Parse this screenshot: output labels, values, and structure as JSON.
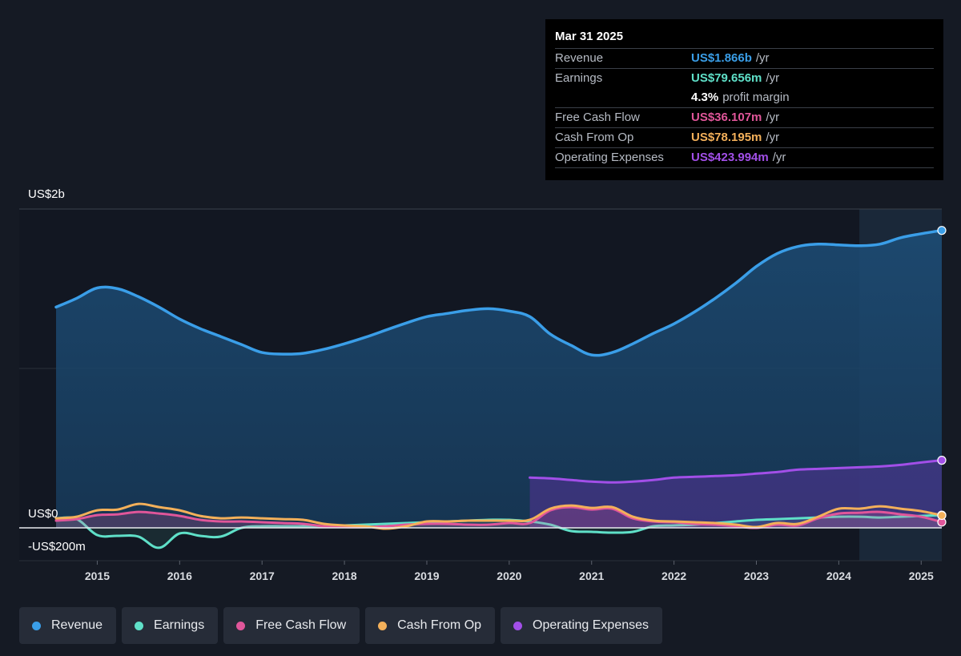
{
  "tooltip": {
    "date": "Mar 31 2025",
    "rows": [
      {
        "label": "Revenue",
        "value": "US$1.866b",
        "unit": "/yr",
        "color": "#3a9ee8"
      },
      {
        "label": "Earnings",
        "value": "US$79.656m",
        "unit": "/yr",
        "color": "#5fe0c8"
      },
      {
        "label": "",
        "value": "4.3%",
        "unit": "profit margin",
        "color": "#ffffff"
      },
      {
        "label": "Free Cash Flow",
        "value": "US$36.107m",
        "unit": "/yr",
        "color": "#e0569a"
      },
      {
        "label": "Cash From Op",
        "value": "US$78.195m",
        "unit": "/yr",
        "color": "#f3b05a"
      },
      {
        "label": "Operating Expenses",
        "value": "US$423.994m",
        "unit": "/yr",
        "color": "#a24fe8"
      }
    ]
  },
  "legend": [
    {
      "name": "Revenue",
      "color": "#3a9ee8"
    },
    {
      "name": "Earnings",
      "color": "#5fe0c8"
    },
    {
      "name": "Free Cash Flow",
      "color": "#e0569a"
    },
    {
      "name": "Cash From Op",
      "color": "#f3b05a"
    },
    {
      "name": "Operating Expenses",
      "color": "#a24fe8"
    }
  ],
  "chart_data": {
    "type": "area",
    "y_tick_labels": [
      "US$2b",
      "US$0",
      "-US$200m"
    ],
    "x_tick_labels": [
      "2015",
      "2016",
      "2017",
      "2018",
      "2019",
      "2020",
      "2021",
      "2022",
      "2023",
      "2024",
      "2025"
    ],
    "xlim": [
      2014.5,
      2025.25
    ],
    "ylim": [
      -200,
      2000
    ],
    "units": "US$ millions",
    "highlight_start": 2024.25,
    "series": [
      {
        "name": "Revenue",
        "color": "#3a9ee8",
        "fill": true,
        "x": [
          2014.5,
          2014.75,
          2015.0,
          2015.25,
          2015.5,
          2015.75,
          2016.0,
          2016.25,
          2016.5,
          2016.75,
          2017.0,
          2017.25,
          2017.5,
          2017.75,
          2018.0,
          2018.25,
          2018.5,
          2018.75,
          2019.0,
          2019.25,
          2019.5,
          2019.75,
          2020.0,
          2020.25,
          2020.5,
          2020.75,
          2021.0,
          2021.25,
          2021.5,
          2021.75,
          2022.0,
          2022.25,
          2022.5,
          2022.75,
          2023.0,
          2023.25,
          2023.5,
          2023.75,
          2024.0,
          2024.25,
          2024.5,
          2024.75,
          2025.0,
          2025.25
        ],
        "y": [
          1385,
          1440,
          1505,
          1500,
          1450,
          1385,
          1310,
          1250,
          1200,
          1150,
          1100,
          1090,
          1095,
          1120,
          1155,
          1195,
          1240,
          1285,
          1325,
          1345,
          1365,
          1375,
          1360,
          1325,
          1215,
          1145,
          1085,
          1100,
          1155,
          1220,
          1280,
          1355,
          1440,
          1535,
          1640,
          1720,
          1765,
          1780,
          1775,
          1770,
          1780,
          1820,
          1845,
          1866
        ]
      },
      {
        "name": "Operating Expenses",
        "color": "#a24fe8",
        "fill": true,
        "x": [
          2020.25,
          2020.5,
          2020.75,
          2021.0,
          2021.25,
          2021.5,
          2021.75,
          2022.0,
          2022.25,
          2022.5,
          2022.75,
          2023.0,
          2023.25,
          2023.5,
          2023.75,
          2024.0,
          2024.25,
          2024.5,
          2024.75,
          2025.0,
          2025.25
        ],
        "y": [
          315,
          310,
          300,
          290,
          285,
          290,
          300,
          315,
          320,
          325,
          330,
          340,
          350,
          365,
          370,
          375,
          380,
          385,
          395,
          410,
          424
        ]
      },
      {
        "name": "Earnings",
        "color": "#5fe0c8",
        "fill": true,
        "x": [
          2014.5,
          2014.75,
          2015.0,
          2015.25,
          2015.5,
          2015.75,
          2016.0,
          2016.25,
          2016.5,
          2016.75,
          2017.0,
          2017.25,
          2017.5,
          2017.75,
          2018.0,
          2018.25,
          2018.5,
          2018.75,
          2019.0,
          2019.25,
          2019.5,
          2019.75,
          2020.0,
          2020.25,
          2020.5,
          2020.75,
          2021.0,
          2021.25,
          2021.5,
          2021.75,
          2022.0,
          2022.25,
          2022.5,
          2022.75,
          2023.0,
          2023.25,
          2023.5,
          2023.75,
          2024.0,
          2024.25,
          2024.5,
          2024.75,
          2025.0,
          2025.25
        ],
        "y": [
          60,
          55,
          -45,
          -50,
          -55,
          -125,
          -35,
          -50,
          -55,
          0,
          10,
          10,
          10,
          10,
          15,
          20,
          25,
          30,
          35,
          40,
          45,
          50,
          50,
          40,
          20,
          -20,
          -25,
          -30,
          -25,
          10,
          15,
          20,
          30,
          40,
          50,
          55,
          60,
          65,
          70,
          70,
          65,
          70,
          75,
          80
        ]
      },
      {
        "name": "Free Cash Flow",
        "color": "#e0569a",
        "fill": true,
        "x": [
          2014.5,
          2014.75,
          2015.0,
          2015.25,
          2015.5,
          2015.75,
          2016.0,
          2016.25,
          2016.5,
          2016.75,
          2017.0,
          2017.25,
          2017.5,
          2017.75,
          2018.0,
          2018.25,
          2018.5,
          2018.75,
          2019.0,
          2019.25,
          2019.5,
          2019.75,
          2020.0,
          2020.25,
          2020.5,
          2020.75,
          2021.0,
          2021.25,
          2021.5,
          2021.75,
          2022.0,
          2022.25,
          2022.5,
          2022.75,
          2023.0,
          2023.25,
          2023.5,
          2023.75,
          2024.0,
          2024.25,
          2024.5,
          2024.75,
          2025.0,
          2025.25
        ],
        "y": [
          45,
          55,
          80,
          85,
          100,
          90,
          75,
          50,
          40,
          40,
          35,
          30,
          25,
          10,
          5,
          5,
          10,
          20,
          25,
          25,
          20,
          20,
          30,
          30,
          110,
          130,
          115,
          120,
          60,
          40,
          35,
          25,
          20,
          10,
          0,
          20,
          15,
          60,
          90,
          95,
          100,
          85,
          70,
          36
        ]
      },
      {
        "name": "Cash From Op",
        "color": "#f3b05a",
        "fill": false,
        "x": [
          2014.5,
          2014.75,
          2015.0,
          2015.25,
          2015.5,
          2015.75,
          2016.0,
          2016.25,
          2016.5,
          2016.75,
          2017.0,
          2017.25,
          2017.5,
          2017.75,
          2018.0,
          2018.25,
          2018.5,
          2018.75,
          2019.0,
          2019.25,
          2019.5,
          2019.75,
          2020.0,
          2020.25,
          2020.5,
          2020.75,
          2021.0,
          2021.25,
          2021.5,
          2021.75,
          2022.0,
          2022.25,
          2022.5,
          2022.75,
          2023.0,
          2023.25,
          2023.5,
          2023.75,
          2024.0,
          2024.25,
          2024.5,
          2024.75,
          2025.0,
          2025.25
        ],
        "y": [
          60,
          70,
          110,
          115,
          150,
          130,
          110,
          75,
          60,
          65,
          60,
          55,
          50,
          25,
          15,
          10,
          -5,
          10,
          40,
          40,
          45,
          45,
          45,
          50,
          120,
          140,
          125,
          130,
          70,
          45,
          40,
          35,
          30,
          20,
          5,
          30,
          25,
          70,
          120,
          120,
          135,
          120,
          105,
          78
        ]
      }
    ]
  }
}
